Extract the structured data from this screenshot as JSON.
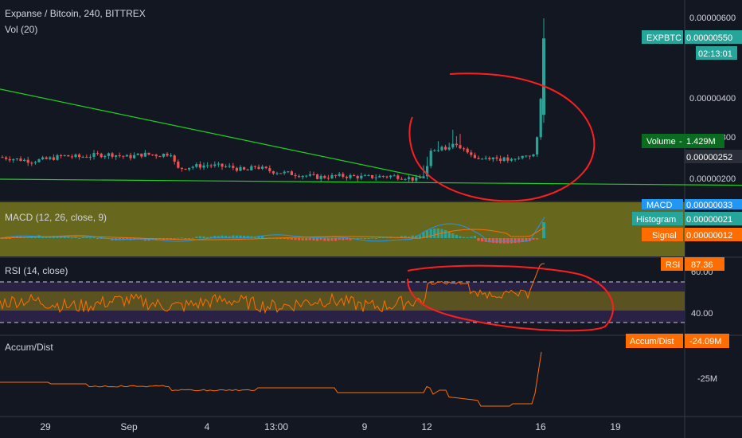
{
  "header": {
    "title": "Expanse / Bitcoin, 240, BITTREX",
    "volume_study": "Vol (20)",
    "macd_study": "MACD (12, 26, close, 9)",
    "rsi_study": "RSI (14, close)",
    "ad_study": "Accum/Dist"
  },
  "colors": {
    "background": "#131722",
    "up": "#26a69a",
    "down": "#ef5350",
    "trendline": "#1fd11f",
    "macd_line": "#2196f3",
    "signal_line": "#ff6d00",
    "rsi_line": "#ff6d00",
    "ad_line": "#ff6d00",
    "annotation": "#ff1e1e",
    "macd_band": "#6b6b1e",
    "rsi_band": "#5e5522",
    "rsi_band_low": "#3d2f62"
  },
  "price_axis": {
    "ticks": [
      "0.00000600",
      "0.00000400",
      "0.00000200"
    ],
    "hidden_tick": "0.00000300"
  },
  "price_badges": {
    "symbol_label": "EXPBTC",
    "last_price": "0.00000550",
    "countdown": "02:13:01",
    "volume_label": "Volume",
    "volume_value": "1.429M",
    "volume_price": "0.00000252"
  },
  "macd_badges": {
    "macd_label": "MACD",
    "macd_value": "0.00000033",
    "hist_label": "Histogram",
    "hist_value": "0.00000021",
    "signal_label": "Signal",
    "signal_value": "0.00000012"
  },
  "rsi_badges": {
    "label": "RSI",
    "value": "87.36",
    "tick_high": "60.00",
    "tick_low": "40.00"
  },
  "ad_badges": {
    "label": "Accum/Dist",
    "value": "-24.09M",
    "tick": "-25M"
  },
  "time_axis": {
    "labels": [
      "29",
      "Sep",
      "4",
      "13:00",
      "9",
      "12",
      "16",
      "19"
    ]
  },
  "chart_data": [
    {
      "type": "candlestick",
      "title": "Expanse / Bitcoin, 240, BITTREX",
      "ylim": [
        1.9e-06,
        6.3e-06
      ],
      "yticks": [
        2e-06,
        4e-06,
        6e-06
      ],
      "close_trace": [
        [
          0,
          2.55
        ],
        [
          20,
          2.5
        ],
        [
          40,
          2.45
        ],
        [
          60,
          2.5
        ],
        [
          80,
          2.58
        ],
        [
          100,
          2.55
        ],
        [
          120,
          2.6
        ],
        [
          140,
          2.62
        ],
        [
          160,
          2.55
        ],
        [
          180,
          2.62
        ],
        [
          200,
          2.6
        ],
        [
          215,
          2.65
        ],
        [
          222,
          2.25
        ],
        [
          235,
          2.3
        ],
        [
          260,
          2.35
        ],
        [
          290,
          2.3
        ],
        [
          310,
          2.2
        ],
        [
          320,
          2.32
        ],
        [
          340,
          2.2
        ],
        [
          360,
          2.15
        ],
        [
          380,
          2.1
        ],
        [
          400,
          2.05
        ],
        [
          430,
          2.08
        ],
        [
          460,
          2.05
        ],
        [
          490,
          2.08
        ],
        [
          510,
          2.05
        ],
        [
          525,
          1.97
        ],
        [
          535,
          2.15
        ],
        [
          540,
          2.75
        ],
        [
          555,
          2.75
        ],
        [
          570,
          2.85
        ],
        [
          585,
          2.75
        ],
        [
          600,
          2.5
        ],
        [
          615,
          2.55
        ],
        [
          630,
          2.5
        ],
        [
          645,
          2.45
        ],
        [
          660,
          2.6
        ],
        [
          672,
          2.6
        ],
        [
          678,
          3.5
        ],
        [
          683,
          5.5
        ]
      ],
      "trendlines": [
        {
          "from": [
            0,
            4.24
          ],
          "to": [
            530,
            2.05
          ]
        },
        {
          "from": [
            0,
            2.0
          ],
          "to": [
            932,
            1.85
          ]
        }
      ]
    },
    {
      "type": "macd",
      "title": "MACD (12, 26, close, 9)",
      "last": {
        "macd": 3.3e-07,
        "histogram": 2.1e-07,
        "signal": 1.2e-07
      }
    },
    {
      "type": "line",
      "title": "RSI (14, close)",
      "ylim": [
        30,
        75
      ],
      "levels": [
        70,
        30
      ],
      "band": [
        50,
        60
      ],
      "last": 87.36
    },
    {
      "type": "line",
      "title": "Accum/Dist",
      "last": -24.09,
      "unit": "M",
      "yticks": [
        -25
      ]
    }
  ]
}
